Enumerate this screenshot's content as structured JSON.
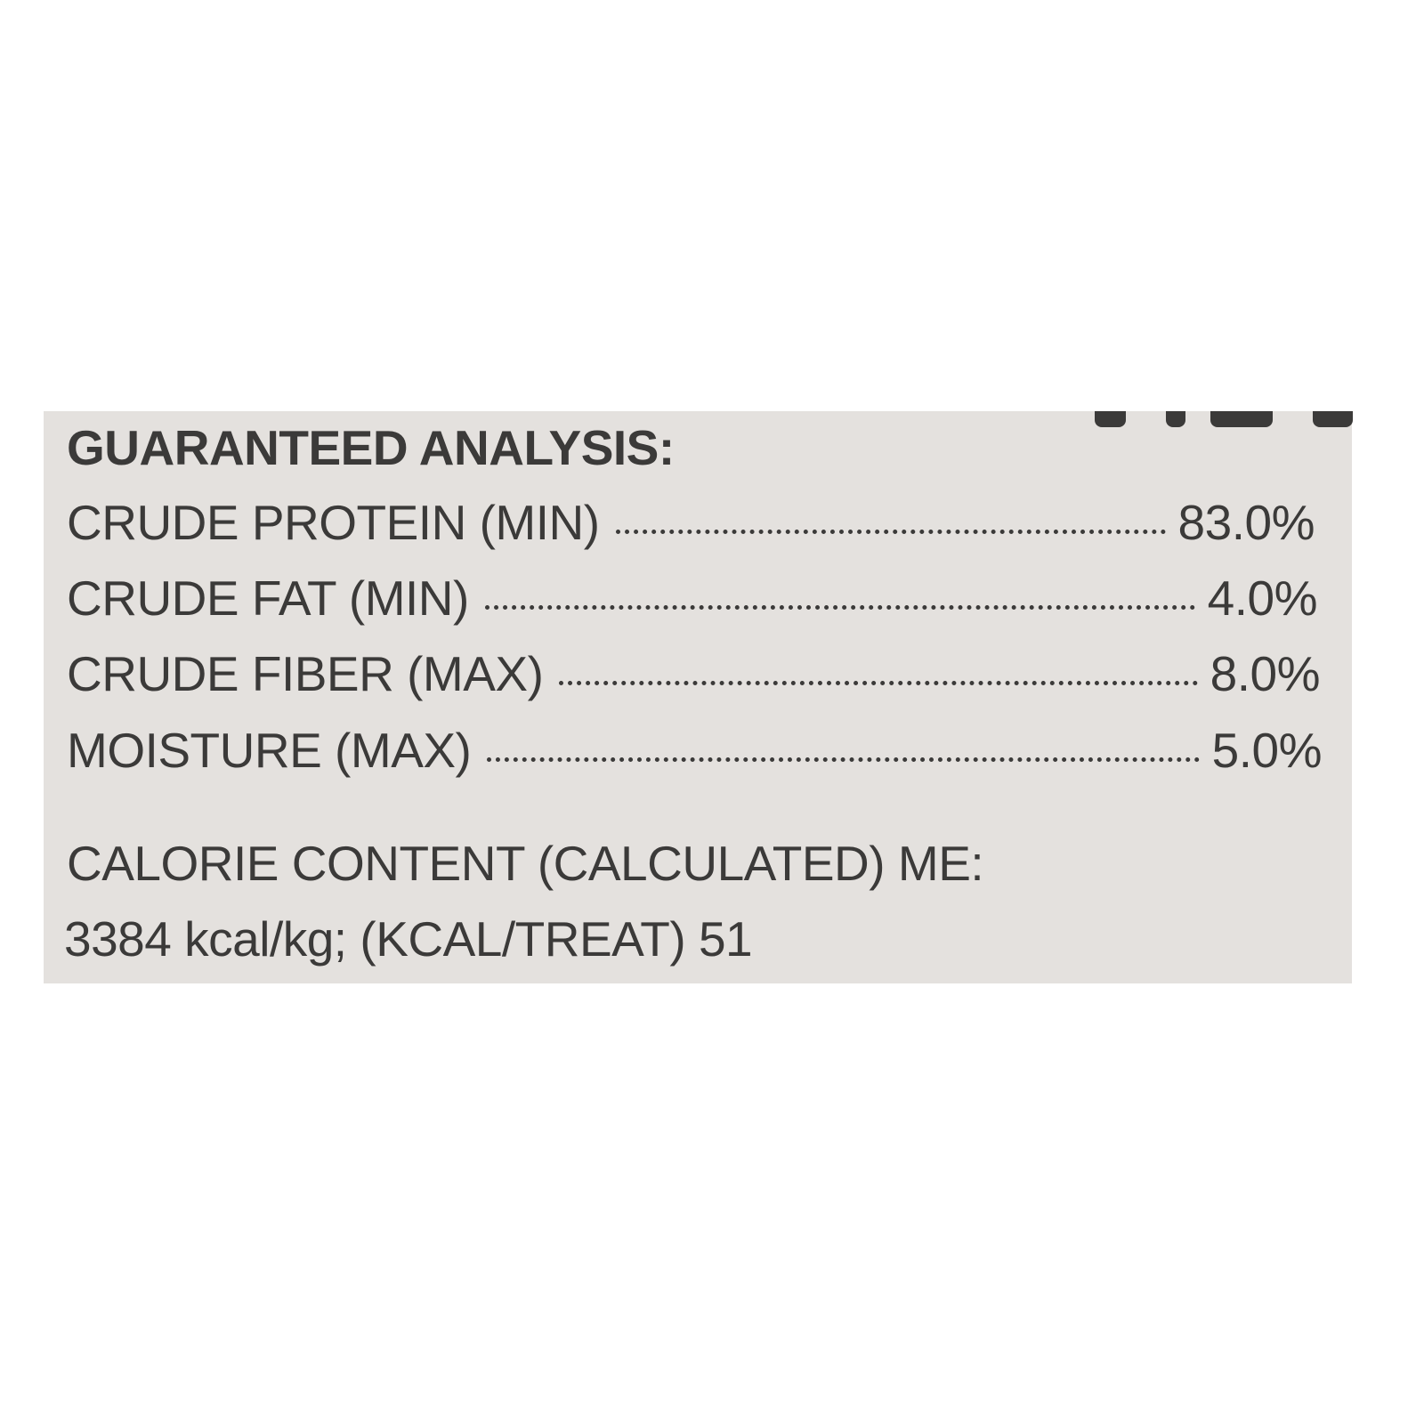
{
  "label": {
    "heading": "GUARANTEED ANALYSIS:",
    "rows": [
      {
        "name": "CRUDE PROTEIN (MIN)",
        "value": "83.0%"
      },
      {
        "name": "CRUDE FAT (MIN)",
        "value": "4.0%"
      },
      {
        "name": "CRUDE FIBER (MAX)",
        "value": "8.0%"
      },
      {
        "name": "MOISTURE (MAX)",
        "value": "5.0%"
      }
    ],
    "calorie_heading": "CALORIE CONTENT (CALCULATED) ME:",
    "calorie_value": "3384 kcal/kg; (KCAL/TREAT) 51"
  },
  "colors": {
    "panel": "#e4e1de",
    "text": "#3b3a39"
  }
}
